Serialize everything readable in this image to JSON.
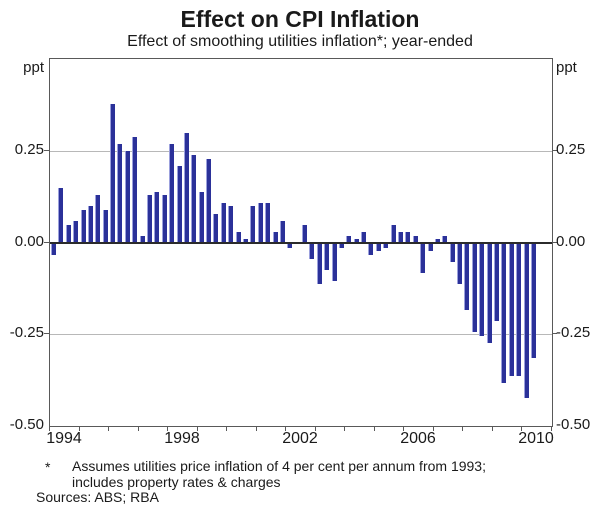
{
  "title": "Effect on CPI Inflation",
  "subtitle": "Effect of smoothing utilities inflation*; year-ended",
  "footnote": {
    "marker": "*",
    "line1": "Assumes utilities price inflation of 4 per cent per annum from 1993;",
    "line2": "includes property rates & charges"
  },
  "sources": "Sources: ABS; RBA",
  "chart_data": {
    "type": "bar",
    "title": "Effect on CPI Inflation",
    "subtitle": "Effect of smoothing utilities inflation*; year-ended",
    "unit_label": "ppt",
    "ylabel_left": "ppt",
    "ylabel_right": "ppt",
    "ylim": [
      -0.5,
      0.5
    ],
    "ytick_labels": [
      "0.25",
      "0.00",
      "-0.25",
      "-0.50"
    ],
    "ytick_values": [
      0.25,
      0.0,
      -0.25,
      -0.5
    ],
    "gridline_values": [
      0.25,
      0.0,
      -0.25
    ],
    "grid": "horizontal",
    "legend_position": "none",
    "xlabel": "",
    "xtick_labels": [
      "1994",
      "1998",
      "2002",
      "2006",
      "2010"
    ],
    "x_axis_year_range": [
      1994,
      2011
    ],
    "frequency": "quarterly",
    "categories": [
      "1994Q1",
      "1994Q2",
      "1994Q3",
      "1994Q4",
      "1995Q1",
      "1995Q2",
      "1995Q3",
      "1995Q4",
      "1996Q1",
      "1996Q2",
      "1996Q3",
      "1996Q4",
      "1997Q1",
      "1997Q2",
      "1997Q3",
      "1997Q4",
      "1998Q1",
      "1998Q2",
      "1998Q3",
      "1998Q4",
      "1999Q1",
      "1999Q2",
      "1999Q3",
      "1999Q4",
      "2000Q1",
      "2000Q2",
      "2000Q3",
      "2000Q4",
      "2001Q1",
      "2001Q2",
      "2001Q3",
      "2001Q4",
      "2002Q1",
      "2002Q2",
      "2002Q3",
      "2002Q4",
      "2003Q1",
      "2003Q2",
      "2003Q3",
      "2003Q4",
      "2004Q1",
      "2004Q2",
      "2004Q3",
      "2004Q4",
      "2005Q1",
      "2005Q2",
      "2005Q3",
      "2005Q4",
      "2006Q1",
      "2006Q2",
      "2006Q3",
      "2006Q4",
      "2007Q1",
      "2007Q2",
      "2007Q3",
      "2007Q4",
      "2008Q1",
      "2008Q2",
      "2008Q3",
      "2008Q4",
      "2009Q1",
      "2009Q2",
      "2009Q3",
      "2009Q4",
      "2010Q1",
      "2010Q2"
    ],
    "values": [
      -0.03,
      0.15,
      0.05,
      0.06,
      0.09,
      0.1,
      0.13,
      0.09,
      0.38,
      0.27,
      0.25,
      0.29,
      0.02,
      0.13,
      0.14,
      0.13,
      0.27,
      0.21,
      0.3,
      0.24,
      0.14,
      0.23,
      0.08,
      0.11,
      0.1,
      0.03,
      0.01,
      0.1,
      0.11,
      0.11,
      0.03,
      0.06,
      -0.01,
      0.0,
      0.05,
      -0.04,
      -0.11,
      -0.07,
      -0.1,
      -0.01,
      0.02,
      0.01,
      0.03,
      -0.03,
      -0.02,
      -0.01,
      0.05,
      0.03,
      0.03,
      0.02,
      -0.08,
      -0.02,
      0.01,
      0.02,
      -0.05,
      -0.11,
      -0.18,
      -0.24,
      -0.25,
      -0.27,
      -0.21,
      -0.38,
      -0.36,
      -0.36,
      -0.42,
      -0.31
    ],
    "colors": {
      "bar_fill": "#2b3199",
      "bar_edge": "#9ba0dd",
      "gridline": "#b8b8b8",
      "zero_line": "#2b2b2b",
      "frame": "#595959",
      "text": "#1a1a1a"
    }
  }
}
